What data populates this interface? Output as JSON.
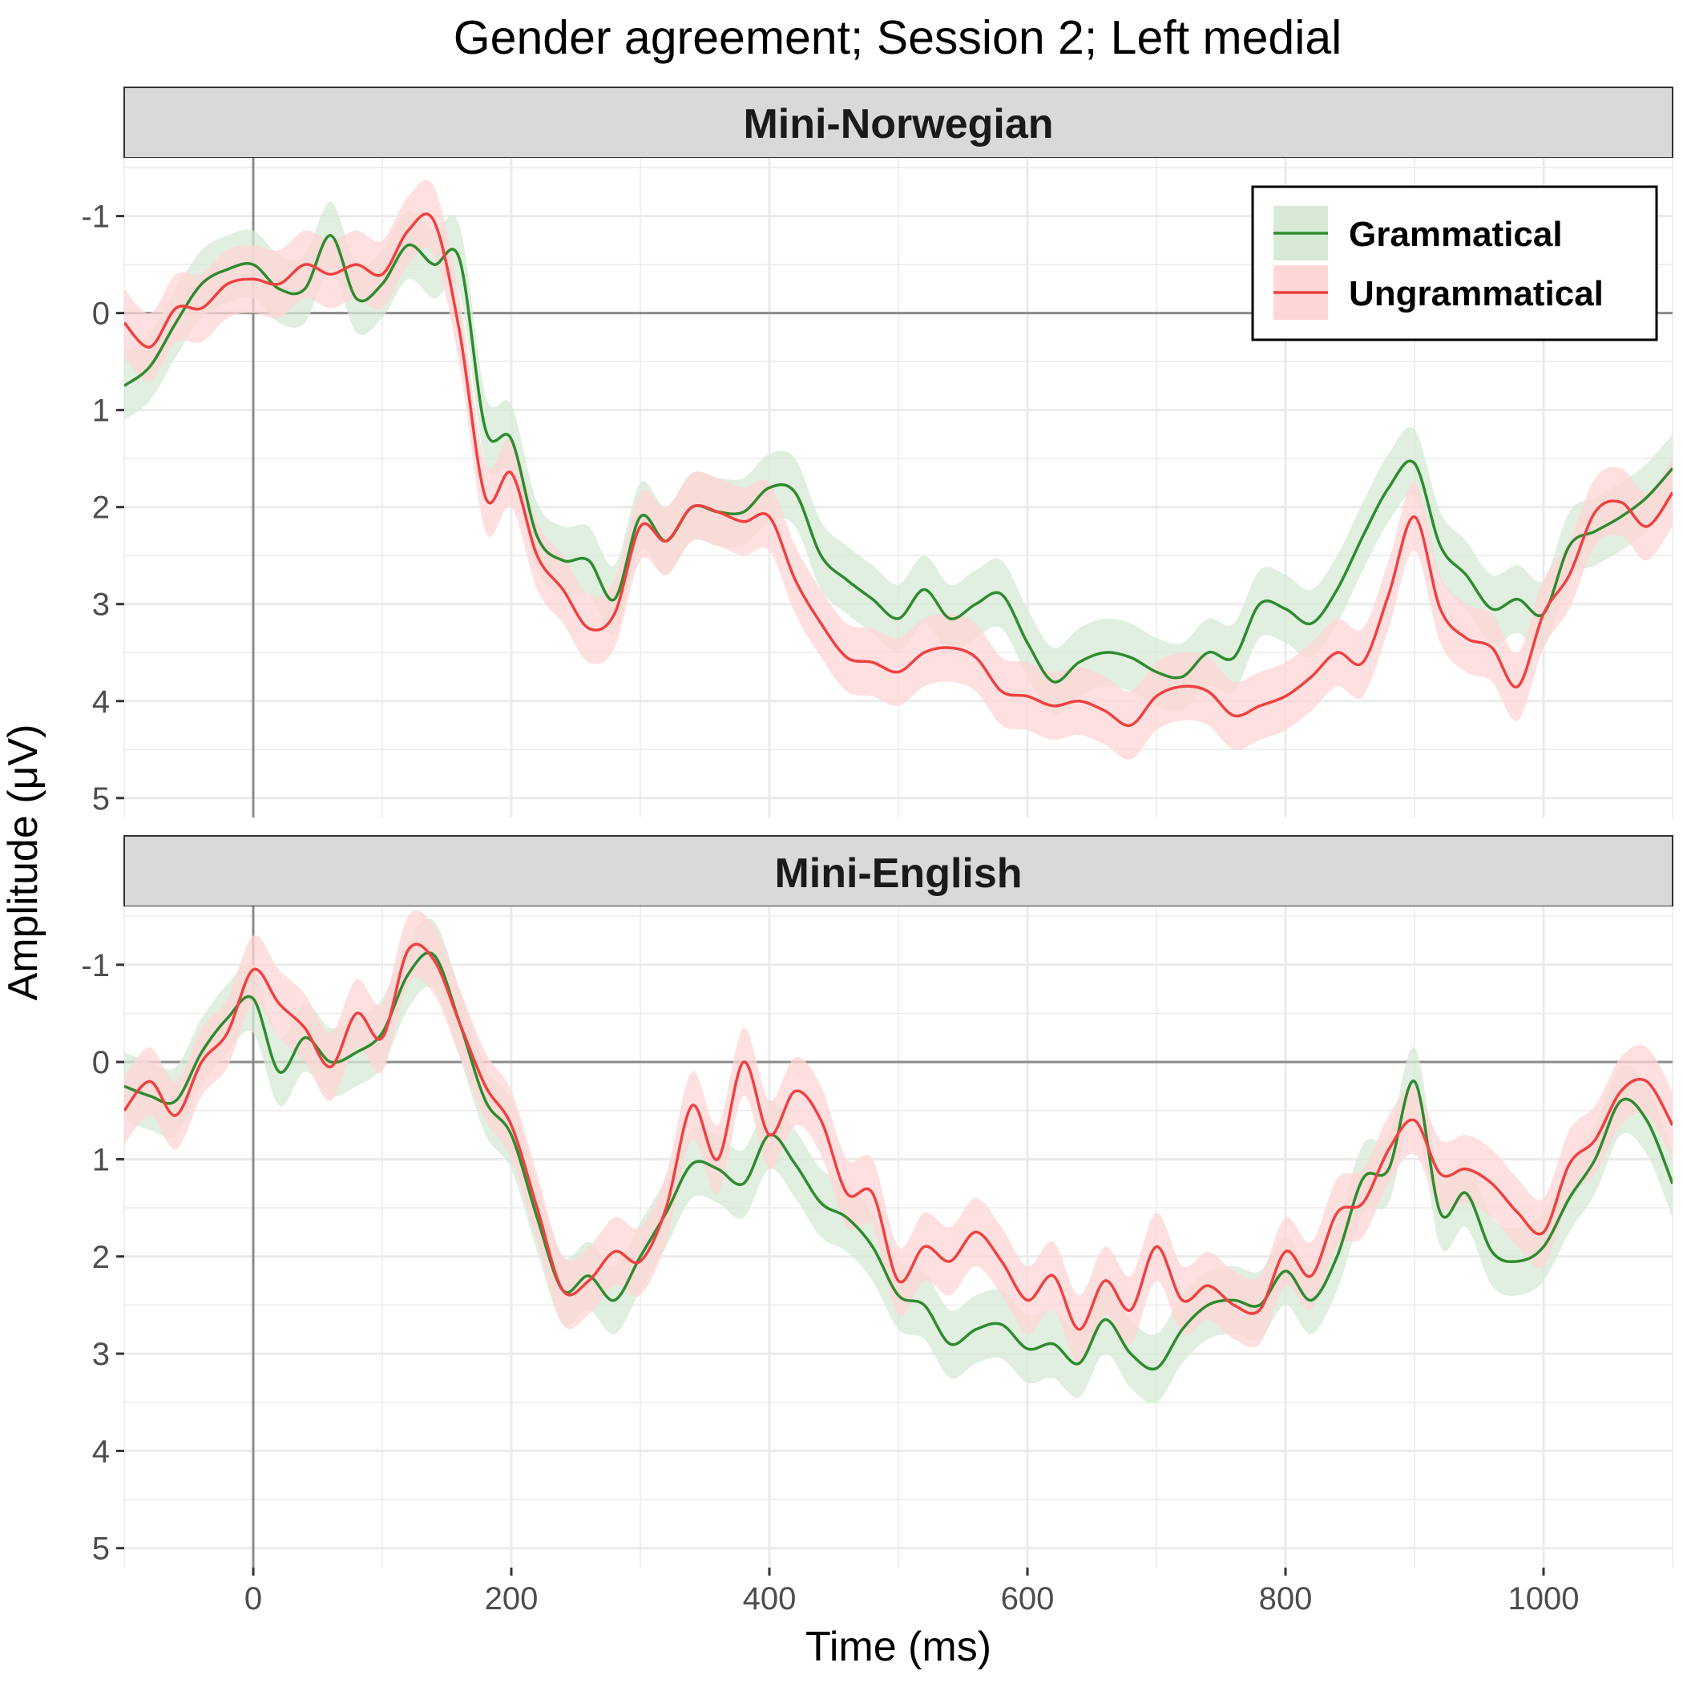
{
  "chart_data": {
    "type": "line",
    "title": "Gender agreement; Session 2; Left medial",
    "xlabel": "Time (ms)",
    "ylabel": "Amplitude (μV)",
    "xlim": [
      -100,
      1100
    ],
    "ylim": [
      -1.6,
      5.2
    ],
    "y_reversed": true,
    "x_ticks": [
      0,
      200,
      400,
      600,
      800,
      1000
    ],
    "y_ticks": [
      -1,
      0,
      1,
      2,
      3,
      4,
      5
    ],
    "grid": true,
    "legend_position": "top-right",
    "colors": {
      "Grammatical": "#2e8b2e",
      "Ungrammatical": "#f04040"
    },
    "band_colors": {
      "Grammatical": "#d6ead6",
      "Ungrammatical": "#ffd6d6"
    },
    "panels": [
      {
        "label": "Mini-Norwegian",
        "x": [
          -100,
          -80,
          -60,
          -40,
          -20,
          0,
          20,
          40,
          60,
          80,
          100,
          120,
          140,
          160,
          180,
          200,
          220,
          240,
          260,
          280,
          300,
          320,
          340,
          360,
          380,
          400,
          420,
          440,
          460,
          480,
          500,
          520,
          540,
          560,
          580,
          600,
          620,
          640,
          660,
          680,
          700,
          720,
          740,
          760,
          780,
          800,
          820,
          840,
          860,
          880,
          900,
          920,
          940,
          960,
          980,
          1000,
          1020,
          1040,
          1060,
          1080,
          1100
        ],
        "series": [
          {
            "name": "Grammatical",
            "values": [
              0.75,
              0.55,
              0.1,
              -0.3,
              -0.45,
              -0.5,
              -0.25,
              -0.25,
              -0.8,
              -0.15,
              -0.3,
              -0.7,
              -0.5,
              -0.55,
              1.2,
              1.3,
              2.3,
              2.55,
              2.55,
              2.95,
              2.1,
              2.35,
              2.0,
              2.05,
              2.05,
              1.8,
              1.85,
              2.5,
              2.75,
              2.95,
              3.15,
              2.85,
              3.15,
              3.0,
              2.9,
              3.4,
              3.8,
              3.6,
              3.5,
              3.55,
              3.7,
              3.75,
              3.5,
              3.55,
              3.0,
              3.05,
              3.2,
              2.85,
              2.3,
              1.8,
              1.55,
              2.4,
              2.7,
              3.05,
              2.95,
              3.1,
              2.4,
              2.25,
              2.1,
              1.9,
              1.6
            ]
          },
          {
            "name": "Ungrammatical",
            "values": [
              0.1,
              0.35,
              -0.05,
              -0.05,
              -0.3,
              -0.35,
              -0.3,
              -0.5,
              -0.4,
              -0.5,
              -0.4,
              -0.85,
              -0.95,
              0.2,
              1.9,
              1.65,
              2.5,
              2.85,
              3.25,
              3.1,
              2.2,
              2.35,
              2.0,
              2.05,
              2.15,
              2.1,
              2.75,
              3.2,
              3.55,
              3.6,
              3.7,
              3.5,
              3.45,
              3.55,
              3.9,
              3.95,
              4.05,
              4.0,
              4.1,
              4.25,
              3.95,
              3.85,
              3.9,
              4.15,
              4.05,
              3.95,
              3.75,
              3.5,
              3.6,
              2.9,
              2.1,
              3.05,
              3.35,
              3.45,
              3.85,
              3.1,
              2.7,
              2.05,
              1.95,
              2.2,
              1.85
            ]
          }
        ]
      },
      {
        "label": "Mini-English",
        "x": [
          -100,
          -80,
          -60,
          -40,
          -20,
          0,
          20,
          40,
          60,
          80,
          100,
          120,
          140,
          160,
          180,
          200,
          220,
          240,
          260,
          280,
          300,
          320,
          340,
          360,
          380,
          400,
          420,
          440,
          460,
          480,
          500,
          520,
          540,
          560,
          580,
          600,
          620,
          640,
          660,
          680,
          700,
          720,
          740,
          760,
          780,
          800,
          820,
          840,
          860,
          880,
          900,
          920,
          940,
          960,
          980,
          1000,
          1020,
          1040,
          1060,
          1080,
          1100
        ],
        "series": [
          {
            "name": "Grammatical",
            "values": [
              0.25,
              0.35,
              0.4,
              -0.1,
              -0.45,
              -0.65,
              0.1,
              -0.25,
              0.0,
              -0.1,
              -0.3,
              -0.9,
              -1.1,
              -0.4,
              0.4,
              0.75,
              1.6,
              2.35,
              2.2,
              2.45,
              2.0,
              1.55,
              1.05,
              1.1,
              1.25,
              0.75,
              1.05,
              1.45,
              1.6,
              1.9,
              2.4,
              2.5,
              2.9,
              2.75,
              2.7,
              2.95,
              2.9,
              3.1,
              2.65,
              3.0,
              3.15,
              2.75,
              2.5,
              2.45,
              2.5,
              2.15,
              2.45,
              2.0,
              1.2,
              1.1,
              0.2,
              1.55,
              1.35,
              1.95,
              2.05,
              1.9,
              1.4,
              1.0,
              0.4,
              0.6,
              1.25
            ]
          },
          {
            "name": "Ungrammatical",
            "values": [
              0.5,
              0.2,
              0.55,
              0.0,
              -0.3,
              -0.95,
              -0.6,
              -0.35,
              0.05,
              -0.5,
              -0.25,
              -1.15,
              -1.05,
              -0.4,
              0.25,
              0.65,
              1.5,
              2.35,
              2.25,
              1.95,
              2.05,
              1.5,
              0.45,
              1.0,
              0.0,
              0.75,
              0.3,
              0.6,
              1.35,
              1.35,
              2.25,
              1.9,
              2.05,
              1.75,
              2.05,
              2.45,
              2.2,
              2.75,
              2.25,
              2.55,
              1.9,
              2.45,
              2.3,
              2.5,
              2.55,
              1.95,
              2.2,
              1.55,
              1.45,
              0.9,
              0.6,
              1.15,
              1.1,
              1.25,
              1.55,
              1.75,
              1.05,
              0.8,
              0.3,
              0.2,
              0.65
            ]
          }
        ]
      }
    ]
  }
}
